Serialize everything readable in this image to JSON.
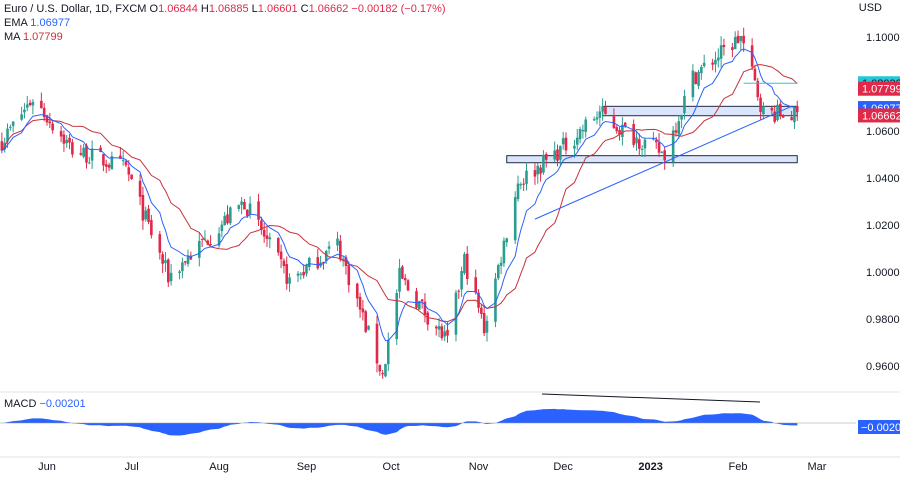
{
  "header": {
    "symbol": "Euro / U.S. Dollar, 1D, FXCM",
    "o_label": "O",
    "o": "1.06844",
    "h_label": "H",
    "h": "1.06885",
    "l_label": "L",
    "l": "1.06601",
    "c_label": "C",
    "c": "1.06662",
    "change": "−0.00182 (−0.17%)",
    "ema_label": "EMA",
    "ema": "1.06977",
    "ma_label": "MA",
    "ma": "1.07799"
  },
  "macd": {
    "label": "MACD",
    "value": "−0.00201"
  },
  "colors": {
    "up": "#2a9d8f",
    "down": "#e0294a",
    "ema": "#2962ff",
    "ma": "#c8323c",
    "macd_fill": "#2962ff",
    "zone": "#bbd0f7"
  },
  "chart_data": {
    "type": "candlestick",
    "symbol": "EURUSD",
    "timeframe": "1D",
    "y_unit": "USD",
    "ylim": [
      0.955,
      1.105
    ],
    "y_ticks": [
      "1.10000",
      "1.08000",
      "1.06000",
      "1.04000",
      "1.02000",
      "1.00000",
      "0.98000",
      "0.96000"
    ],
    "x_ticks": [
      "Jun",
      "Jul",
      "Aug",
      "Sep",
      "Oct",
      "Nov",
      "Dec",
      "2023",
      "Feb",
      "Mar"
    ],
    "price_labels": [
      {
        "value": "1.08032",
        "kind": "line"
      },
      {
        "value": "1.07799",
        "kind": "ma"
      },
      {
        "value": "1.06977",
        "kind": "ema"
      },
      {
        "value": "1.06662",
        "kind": "close"
      }
    ],
    "zones": [
      {
        "name": "resistance-zone",
        "from_date": "2022-11-11",
        "to_date": "2023-02-22",
        "low": 1.0465,
        "high": 1.0495
      },
      {
        "name": "support-zone",
        "from_date": "2022-12-15",
        "to_date": "2023-02-22",
        "low": 1.0665,
        "high": 1.0705
      }
    ],
    "trendlines": [
      {
        "name": "uptrend-line",
        "from": [
          "2022-11-21",
          1.0225
        ],
        "to": [
          "2023-02-20",
          1.0705
        ]
      },
      {
        "name": "horizontal-line",
        "from": [
          "2023-02-03",
          1.08032
        ],
        "to": [
          "2023-02-22",
          1.08032
        ]
      }
    ],
    "key_points": [
      {
        "date": "2022-05-27",
        "price": 1.074
      },
      {
        "date": "2022-06-10",
        "price": 1.052
      },
      {
        "date": "2022-06-29",
        "price": 1.044
      },
      {
        "date": "2022-07-14",
        "price": 0.998
      },
      {
        "date": "2022-08-10",
        "price": 1.03
      },
      {
        "date": "2022-08-26",
        "price": 0.996
      },
      {
        "date": "2022-09-12",
        "price": 1.012
      },
      {
        "date": "2022-09-28",
        "price": 0.956
      },
      {
        "date": "2022-10-04",
        "price": 0.998
      },
      {
        "date": "2022-10-21",
        "price": 0.97
      },
      {
        "date": "2022-10-27",
        "price": 1.005
      },
      {
        "date": "2022-11-03",
        "price": 0.976
      },
      {
        "date": "2022-11-15",
        "price": 1.038
      },
      {
        "date": "2022-12-02",
        "price": 1.054
      },
      {
        "date": "2022-12-14",
        "price": 1.068
      },
      {
        "date": "2022-12-20",
        "price": 1.062
      },
      {
        "date": "2023-01-06",
        "price": 1.05
      },
      {
        "date": "2023-01-16",
        "price": 1.083
      },
      {
        "date": "2023-02-02",
        "price": 1.1
      },
      {
        "date": "2023-02-10",
        "price": 1.068
      },
      {
        "date": "2023-02-22",
        "price": 1.0666
      }
    ]
  }
}
